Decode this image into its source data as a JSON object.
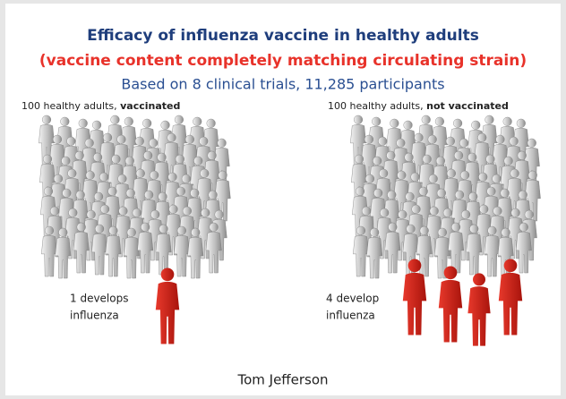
{
  "title": {
    "line1": "Efficacy of influenza vaccine in healthy adults",
    "line2": "(vaccine content completely matching circulating strain)",
    "line3": "Based on 8 clinical trials, 11,285 participants"
  },
  "groups": [
    {
      "label": "100 healthy adults, ",
      "label_bold": "vaccinated",
      "outcome": [
        "1 develops",
        "influenza"
      ]
    },
    {
      "label": "100 healthy adults, ",
      "label_bold": "not vaccinated",
      "outcome": [
        "4 develop",
        "influenza"
      ]
    }
  ],
  "credit": "Tom Jefferson"
}
